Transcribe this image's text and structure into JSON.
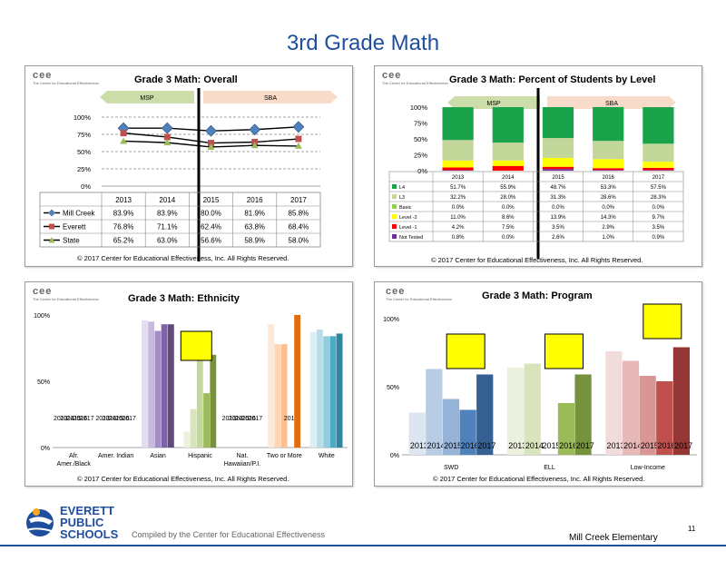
{
  "page": {
    "title": "3rd Grade Math",
    "compiled": "Compiled by the Center for Educational Effectiveness",
    "school": "Mill Creek Elementary",
    "page_number": "11",
    "copyright": "© 2017 Center for Educational Effectiveness, Inc. All Rights Reserved.",
    "logo": {
      "line1": "EVERETT",
      "line2": "PUBLIC",
      "line3": "SCHOOLS"
    },
    "cee": {
      "letters": "cee",
      "sub": "The Center for Educational Effectiveness"
    },
    "colors": {
      "title": "#1f4e9e",
      "accent_orange": "#f5a623"
    }
  },
  "chart_data": [
    {
      "id": "overall",
      "type": "line",
      "title": "Grade 3 Math: Overall",
      "bands": [
        "MSP",
        "SBA"
      ],
      "categories": [
        "2013",
        "2014",
        "2015",
        "2016",
        "2017"
      ],
      "ylim": [
        0,
        100
      ],
      "yticks": [
        "0%",
        "25%",
        "50%",
        "75%",
        "100%"
      ],
      "series": [
        {
          "name": "Mill Creek",
          "values": [
            83.9,
            83.9,
            80.0,
            81.9,
            85.8
          ],
          "labels": [
            "83.9%",
            "83.9%",
            "80.0%",
            "81.9%",
            "85.8%"
          ],
          "color": "#4f81bd",
          "marker": "diamond"
        },
        {
          "name": "Everett",
          "values": [
            76.8,
            71.1,
            62.4,
            63.8,
            68.4
          ],
          "labels": [
            "76.8%",
            "71.1%",
            "62.4%",
            "63.8%",
            "68.4%"
          ],
          "color": "#c0504d",
          "marker": "square"
        },
        {
          "name": "State",
          "values": [
            65.2,
            63.0,
            56.6,
            58.9,
            58.0
          ],
          "labels": [
            "65.2%",
            "63.0%",
            "56.6%",
            "58.9%",
            "58.0%"
          ],
          "color": "#9bbb59",
          "marker": "triangle"
        }
      ]
    },
    {
      "id": "levels",
      "type": "bar",
      "title": "Grade 3 Math: Percent of Students by Level",
      "bands": [
        "MSP",
        "SBA"
      ],
      "categories": [
        "2013",
        "2014",
        "2015",
        "2016",
        "2017"
      ],
      "ylim": [
        0,
        100
      ],
      "yticks": [
        "0%",
        "25%",
        "50%",
        "75%",
        "100%"
      ],
      "series": [
        {
          "name": "L4",
          "values": [
            51.7,
            55.9,
            48.7,
            53.3,
            57.5
          ],
          "labels": [
            "51.7%",
            "55.9%",
            "48.7%",
            "53.3%",
            "57.5%"
          ],
          "color": "#1aa34a"
        },
        {
          "name": "L3",
          "values": [
            32.2,
            28.0,
            31.3,
            28.6,
            28.3
          ],
          "labels": [
            "32.2%",
            "28.0%",
            "31.3%",
            "28.6%",
            "28.3%"
          ],
          "color": "#c4d79b"
        },
        {
          "name": "Basic",
          "values": [
            0.0,
            0.0,
            0.0,
            0.0,
            0.0
          ],
          "labels": [
            "0.0%",
            "0.0%",
            "0.0%",
            "0.0%",
            "0.0%"
          ],
          "color": "#92d050"
        },
        {
          "name": "Level -2",
          "values": [
            11.0,
            8.6,
            13.9,
            14.3,
            9.7
          ],
          "labels": [
            "11.0%",
            "8.6%",
            "13.9%",
            "14.3%",
            "9.7%"
          ],
          "color": "#ffff00"
        },
        {
          "name": "Level -1",
          "values": [
            4.2,
            7.5,
            3.5,
            2.9,
            3.5
          ],
          "labels": [
            "4.2%",
            "7.5%",
            "3.5%",
            "2.9%",
            "3.5%"
          ],
          "color": "#ff0000"
        },
        {
          "name": "Not Tested",
          "values": [
            0.8,
            0.0,
            2.6,
            1.0,
            0.9
          ],
          "labels": [
            "0.8%",
            "0.0%",
            "2.6%",
            "1.0%",
            "0.9%"
          ],
          "color": "#7030a0"
        }
      ]
    },
    {
      "id": "ethnicity",
      "type": "bar",
      "title": "Grade 3 Math: Ethnicity",
      "categories": [
        "Afr. Amer./Black",
        "Amer. Indian",
        "Asian",
        "Hispanic",
        "Nat. Hawaiian/P.I.",
        "Two or More",
        "White"
      ],
      "years": [
        "2013",
        "2014",
        "2015",
        "2016",
        "2017"
      ],
      "ylim": [
        0,
        100
      ],
      "yticks": [
        "0%",
        "50%",
        "100%"
      ],
      "groups": [
        {
          "name": "Afr. Amer./Black",
          "values": [
            null,
            null,
            null,
            null,
            null
          ],
          "colors": [
            "#cccccc",
            "#cccccc",
            "#cccccc",
            "#cccccc",
            "#cccccc"
          ],
          "highlight": false
        },
        {
          "name": "Amer. Indian",
          "values": [
            null,
            null,
            null,
            null,
            null
          ],
          "colors": [
            "#cccccc",
            "#cccccc",
            "#cccccc",
            "#cccccc",
            "#cccccc"
          ],
          "highlight": false
        },
        {
          "name": "Asian",
          "values": [
            96,
            95,
            88,
            93,
            93
          ],
          "colors": [
            "#e4dcef",
            "#c8b8dd",
            "#a48dc5",
            "#7f62a8",
            "#604a7b"
          ],
          "highlight": false
        },
        {
          "name": "Hispanic",
          "values": [
            12,
            29,
            72,
            41,
            70
          ],
          "colors": [
            "#ebf1de",
            "#d7e4bc",
            "#c3d69b",
            "#9bbb59",
            "#76923c"
          ],
          "highlight": true
        },
        {
          "name": "Nat. Hawaiian/P.I.",
          "values": [
            null,
            null,
            null,
            null,
            null
          ],
          "colors": [
            "#cccccc",
            "#cccccc",
            "#cccccc",
            "#cccccc",
            "#cccccc"
          ],
          "highlight": false
        },
        {
          "name": "Two or More",
          "values": [
            93,
            78,
            78,
            null,
            100
          ],
          "colors": [
            "#fde9d9",
            "#fcd5b4",
            "#fabf8f",
            "#f79646",
            "#e46c0a"
          ],
          "highlight": false
        },
        {
          "name": "White",
          "values": [
            87,
            89,
            84,
            84,
            86
          ],
          "colors": [
            "#daeef3",
            "#b6dde8",
            "#93cddd",
            "#4bacc6",
            "#31859c"
          ],
          "highlight": false
        }
      ]
    },
    {
      "id": "program",
      "type": "bar",
      "title": "Grade 3 Math: Program",
      "categories": [
        "SWD",
        "ELL",
        "Low-Income"
      ],
      "years": [
        "2013",
        "2014",
        "2015",
        "2016",
        "2017"
      ],
      "ylim": [
        0,
        100
      ],
      "yticks": [
        "0%",
        "50%",
        "100%"
      ],
      "groups": [
        {
          "name": "SWD",
          "values": [
            31,
            63,
            41,
            33,
            59
          ],
          "colors": [
            "#dce6f1",
            "#b8cce4",
            "#95b3d7",
            "#4f81bd",
            "#376092"
          ],
          "highlight": true
        },
        {
          "name": "ELL",
          "values": [
            64,
            67,
            null,
            38,
            59
          ],
          "colors": [
            "#ebf1de",
            "#d7e4bc",
            "#c3d69b",
            "#9bbb59",
            "#76923c"
          ],
          "highlight": true
        },
        {
          "name": "Low-Income",
          "values": [
            76,
            69,
            58,
            54,
            79
          ],
          "colors": [
            "#f2dcdb",
            "#e6b9b8",
            "#da9694",
            "#c0504d",
            "#953735"
          ],
          "highlight": true
        }
      ]
    }
  ]
}
